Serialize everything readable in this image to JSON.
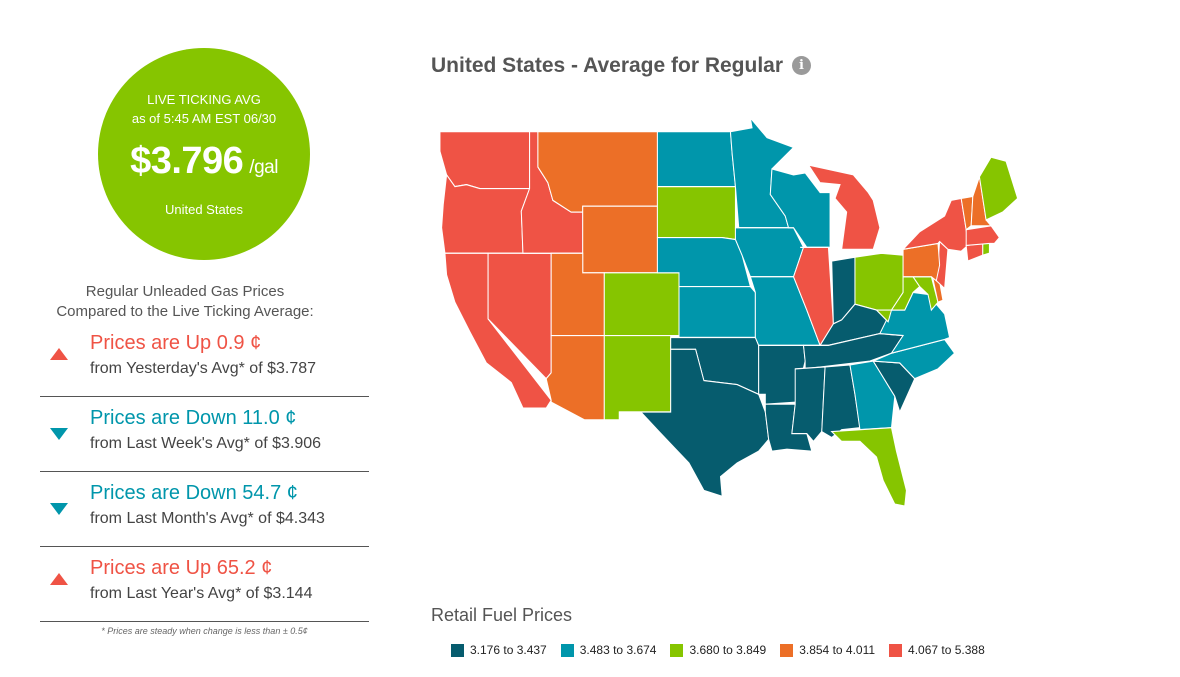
{
  "live": {
    "label": "LIVE TICKING AVG",
    "asof": "as of   5:45 AM EST 06/30",
    "price": "$3.796",
    "unit": "/gal",
    "region": "United States"
  },
  "subtitle_line1": "Regular Unleaded Gas Prices",
  "subtitle_line2": "Compared to the Live Ticking Average:",
  "comparisons": [
    {
      "direction": "up",
      "headline": "Prices are Up 0.9 ¢",
      "detail": "from Yesterday's Avg* of $3.787"
    },
    {
      "direction": "down",
      "headline": "Prices are Down 11.0 ¢",
      "detail": "from Last Week's Avg* of $3.906"
    },
    {
      "direction": "down",
      "headline": "Prices are Down 54.7 ¢",
      "detail": "from Last Month's Avg* of $4.343"
    },
    {
      "direction": "up",
      "headline": "Prices are Up 65.2 ¢",
      "detail": "from Last Year's Avg* of $3.144"
    }
  ],
  "note": "* Prices are steady when change is less than ± 0.5¢",
  "map": {
    "title": "United States - Average for Regular",
    "info_icon": "info-icon"
  },
  "legend": {
    "title": "Retail Fuel Prices",
    "items": [
      {
        "label": "3.176 to 3.437",
        "color": "#065c6e"
      },
      {
        "label": "3.483 to 3.674",
        "color": "#0096ab"
      },
      {
        "label": "3.680 to 3.849",
        "color": "#86c500"
      },
      {
        "label": "3.854 to 4.011",
        "color": "#ec6f27"
      },
      {
        "label": "4.067 to 5.388",
        "color": "#ef5345"
      }
    ]
  },
  "states": [
    {
      "name": "washington",
      "band": 4
    },
    {
      "name": "oregon",
      "band": 4
    },
    {
      "name": "california",
      "band": 4
    },
    {
      "name": "nevada",
      "band": 4
    },
    {
      "name": "idaho",
      "band": 4
    },
    {
      "name": "montana",
      "band": 3
    },
    {
      "name": "wyoming",
      "band": 3
    },
    {
      "name": "utah",
      "band": 3
    },
    {
      "name": "arizona",
      "band": 3
    },
    {
      "name": "colorado",
      "band": 2
    },
    {
      "name": "new-mexico",
      "band": 2
    },
    {
      "name": "north-dakota",
      "band": 1
    },
    {
      "name": "south-dakota",
      "band": 2
    },
    {
      "name": "nebraska",
      "band": 1
    },
    {
      "name": "kansas",
      "band": 1
    },
    {
      "name": "oklahoma",
      "band": 0
    },
    {
      "name": "texas",
      "band": 0
    },
    {
      "name": "minnesota",
      "band": 1
    },
    {
      "name": "iowa",
      "band": 1
    },
    {
      "name": "missouri",
      "band": 1
    },
    {
      "name": "arkansas",
      "band": 0
    },
    {
      "name": "louisiana",
      "band": 0
    },
    {
      "name": "wisconsin",
      "band": 1
    },
    {
      "name": "illinois",
      "band": 4
    },
    {
      "name": "michigan",
      "band": 4
    },
    {
      "name": "indiana",
      "band": 0
    },
    {
      "name": "ohio",
      "band": 2
    },
    {
      "name": "kentucky",
      "band": 0
    },
    {
      "name": "tennessee",
      "band": 0
    },
    {
      "name": "mississippi",
      "band": 0
    },
    {
      "name": "alabama",
      "band": 0
    },
    {
      "name": "georgia",
      "band": 1
    },
    {
      "name": "florida",
      "band": 2
    },
    {
      "name": "south-carolina",
      "band": 0
    },
    {
      "name": "north-carolina",
      "band": 1
    },
    {
      "name": "virginia",
      "band": 1
    },
    {
      "name": "west-virginia",
      "band": 2
    },
    {
      "name": "maryland",
      "band": 2
    },
    {
      "name": "delaware",
      "band": 3
    },
    {
      "name": "new-jersey",
      "band": 4
    },
    {
      "name": "pennsylvania",
      "band": 3
    },
    {
      "name": "new-york",
      "band": 4
    },
    {
      "name": "connecticut",
      "band": 4
    },
    {
      "name": "rhode-island",
      "band": 2
    },
    {
      "name": "massachusetts",
      "band": 4
    },
    {
      "name": "vermont",
      "band": 3
    },
    {
      "name": "new-hampshire",
      "band": 3
    },
    {
      "name": "maine",
      "band": 2
    }
  ]
}
